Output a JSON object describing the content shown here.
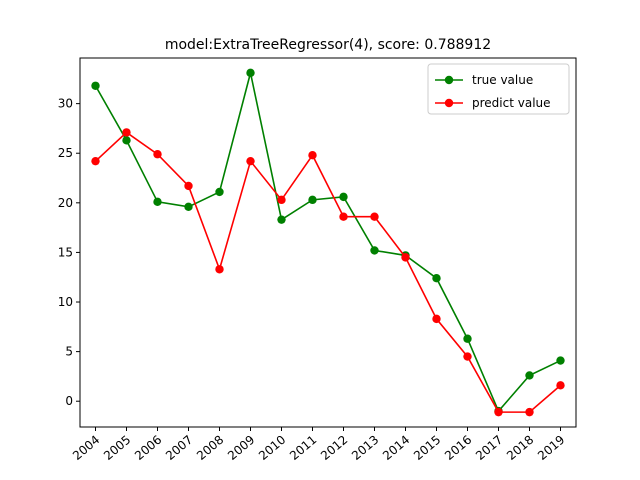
{
  "chart_data": {
    "type": "line",
    "title": "model:ExtraTreeRegressor(4), score: 0.788912",
    "xlabel": "",
    "ylabel": "",
    "categories": [
      "2004",
      "2005",
      "2006",
      "2007",
      "2008",
      "2009",
      "2010",
      "2011",
      "2012",
      "2013",
      "2014",
      "2015",
      "2016",
      "2017",
      "2018",
      "2019"
    ],
    "ylim": [
      -2.6,
      34.6
    ],
    "yticks": [
      0,
      5,
      10,
      15,
      20,
      25,
      30
    ],
    "grid": false,
    "legend_position": "top-right",
    "series": [
      {
        "name": "true value",
        "color": "#008000",
        "values": [
          31.8,
          26.3,
          20.1,
          19.6,
          21.1,
          33.1,
          18.3,
          20.3,
          20.6,
          15.2,
          14.7,
          12.4,
          6.3,
          -1.0,
          2.6,
          4.1
        ]
      },
      {
        "name": "predict value",
        "color": "#ff0000",
        "values": [
          24.2,
          27.1,
          24.9,
          21.7,
          13.3,
          24.2,
          20.3,
          24.8,
          18.6,
          18.6,
          14.5,
          8.3,
          4.5,
          -1.1,
          -1.1,
          1.6
        ]
      }
    ]
  }
}
